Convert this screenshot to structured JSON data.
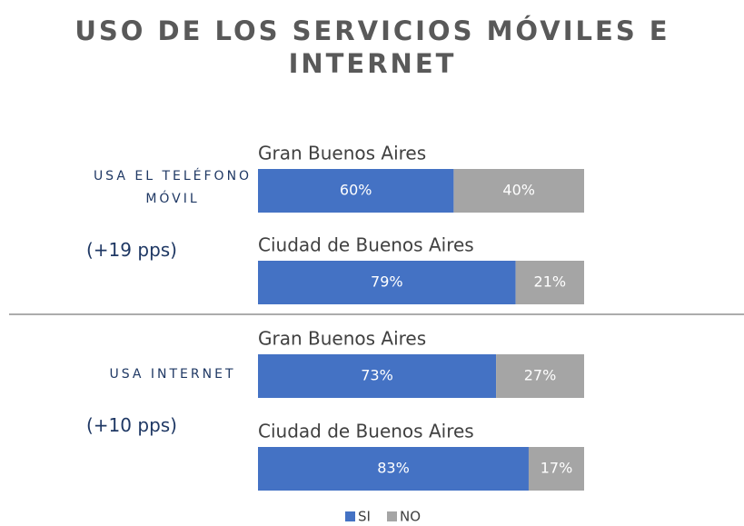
{
  "chart_data": {
    "type": "stacked-bar",
    "title": "USO DE LOS SERVICIOS MÓVILES E INTERNET",
    "groups": [
      {
        "label": "USA EL TELÉFONO MÓVIL",
        "note": "(+19 pps)"
      },
      {
        "label": "USA INTERNET",
        "note": "(+10 pps)"
      }
    ],
    "categories": [
      "Gran Buenos Aires",
      "Ciudad de Buenos Aires",
      "Gran Buenos Aires",
      "Ciudad de Buenos Aires"
    ],
    "series": [
      {
        "name": "SI",
        "color": "#4472c4",
        "values": [
          60,
          79,
          73,
          83
        ],
        "value_labels": [
          "60%",
          "79%",
          "73%",
          "83%"
        ]
      },
      {
        "name": "NO",
        "color": "#a5a5a5",
        "values": [
          40,
          21,
          27,
          17
        ],
        "value_labels": [
          "40%",
          "21%",
          "27%",
          "17%"
        ]
      }
    ],
    "xlim": [
      0,
      100
    ]
  }
}
